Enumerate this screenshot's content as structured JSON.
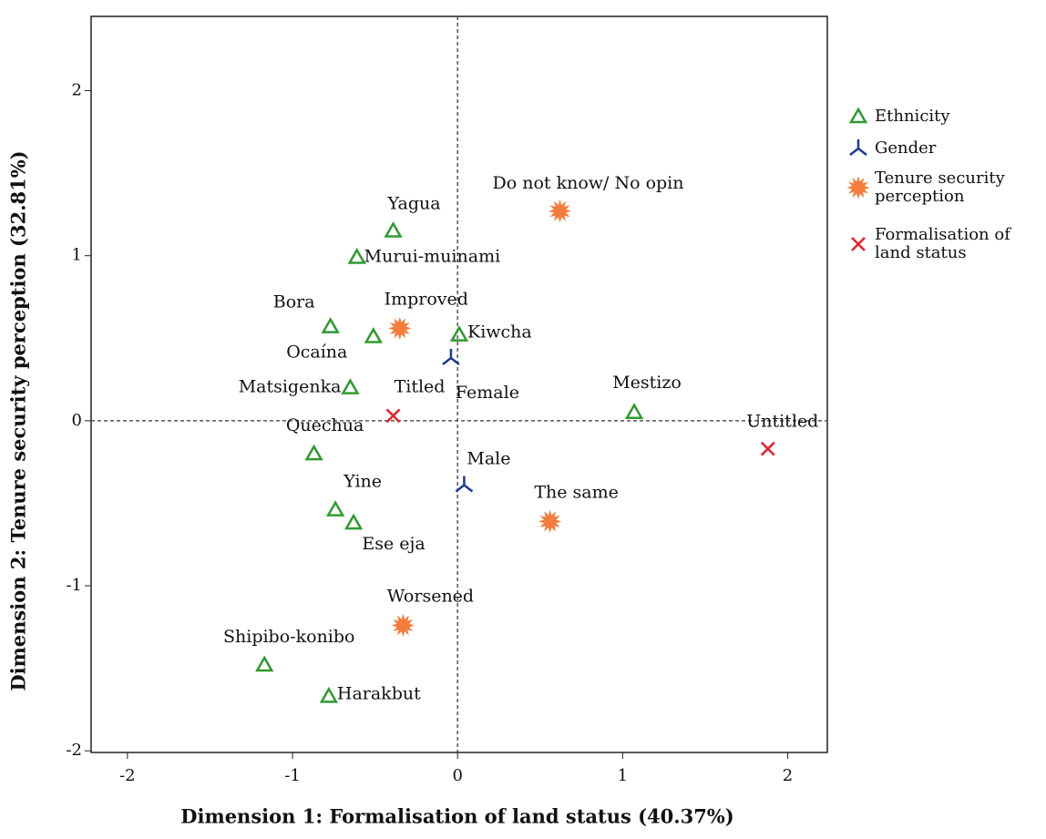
{
  "chart_data": {
    "type": "scatter",
    "xlabel": "Dimension 1: Formalisation of land status (40.37%)",
    "ylabel": "Dimension 2: Tenure security perception (32.81%)",
    "xlim": [
      -2.22,
      2.24
    ],
    "ylim": [
      -2.01,
      2.45
    ],
    "xticks": [
      -2,
      -1,
      0,
      1,
      2
    ],
    "yticks": [
      -2,
      -1,
      0,
      1,
      2
    ],
    "reference_lines": {
      "x": 0,
      "y": 0
    },
    "legend": "right",
    "series": [
      {
        "name": "Ethnicity",
        "color": "#2e9a2e",
        "marker": "triangle",
        "labels": [
          "Yagua",
          "Murui-muinami",
          "Bora",
          "Ocaína",
          "Kiwcha",
          "Matsigenka",
          "Mestizo",
          "Quechua",
          "Yine",
          "Ese eja",
          "Shipibo-konibo",
          "Harakbut"
        ],
        "x": [
          -0.39,
          -0.61,
          -0.77,
          -0.51,
          0.01,
          -0.65,
          1.07,
          -0.87,
          -0.74,
          -0.63,
          -1.17,
          -0.78
        ],
        "values": [
          1.15,
          0.99,
          0.57,
          0.51,
          0.52,
          0.2,
          0.05,
          -0.2,
          -0.54,
          -0.62,
          -1.48,
          -1.67
        ]
      },
      {
        "name": "Gender",
        "color": "#1f3a93",
        "marker": "tripod",
        "labels": [
          "Female",
          "Male"
        ],
        "x": [
          -0.04,
          0.04
        ],
        "values": [
          0.38,
          -0.39
        ]
      },
      {
        "name": "Tenure security perception",
        "color": "#f47c3c",
        "marker": "sun",
        "labels": [
          "Do not know/ No opin",
          "Improved",
          "The same",
          "Worsened"
        ],
        "x": [
          0.62,
          -0.35,
          0.56,
          -0.33
        ],
        "values": [
          1.27,
          0.56,
          -0.61,
          -1.24
        ]
      },
      {
        "name": "Formalisation of land status",
        "color": "#e8202a",
        "marker": "cross",
        "labels": [
          "Titled",
          "Untitled"
        ],
        "x": [
          -0.39,
          1.88
        ],
        "values": [
          0.03,
          -0.17
        ]
      }
    ]
  }
}
